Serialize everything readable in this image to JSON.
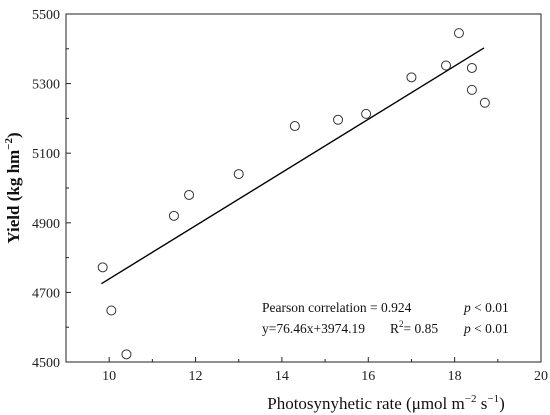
{
  "chart_data": {
    "type": "scatter",
    "xlabel": "Photosynyhetic rate (μmol m",
    "xlabel_sup1": "−2",
    "xlabel_mid": " s",
    "xlabel_sup2": "−1",
    "xlabel_end": ")",
    "ylabel": "Yield (kg hm",
    "ylabel_sup": "−2",
    "ylabel_end": ")",
    "xlim": [
      9,
      20
    ],
    "ylim": [
      4500,
      5500
    ],
    "xticks": [
      10,
      12,
      14,
      16,
      18,
      20
    ],
    "yticks": [
      4500,
      4700,
      4900,
      5100,
      5300,
      5500
    ],
    "grid": false,
    "points": [
      {
        "x": 9.85,
        "y": 4772
      },
      {
        "x": 10.05,
        "y": 4648
      },
      {
        "x": 10.4,
        "y": 4522
      },
      {
        "x": 11.5,
        "y": 4920
      },
      {
        "x": 11.85,
        "y": 4980
      },
      {
        "x": 13.0,
        "y": 5040
      },
      {
        "x": 14.3,
        "y": 5178
      },
      {
        "x": 15.3,
        "y": 5196
      },
      {
        "x": 15.95,
        "y": 5213
      },
      {
        "x": 17.0,
        "y": 5318
      },
      {
        "x": 17.8,
        "y": 5352
      },
      {
        "x": 18.1,
        "y": 5445
      },
      {
        "x": 18.4,
        "y": 5345
      },
      {
        "x": 18.4,
        "y": 5282
      },
      {
        "x": 18.7,
        "y": 5245
      }
    ],
    "fit_line": {
      "x": [
        9.82,
        18.68
      ],
      "slope": 76.46,
      "intercept": 3974.19
    },
    "annotations": {
      "pearson": "Pearson correlation = 0.924",
      "p1_italic": "p",
      "p1_rest": " < 0.01",
      "equation": "y=76.46x+3974.19",
      "r2_prefix": "R",
      "r2_sup": "2",
      "r2_rest": "= 0.85",
      "p2_italic": "p",
      "p2_rest": " < 0.01"
    }
  }
}
